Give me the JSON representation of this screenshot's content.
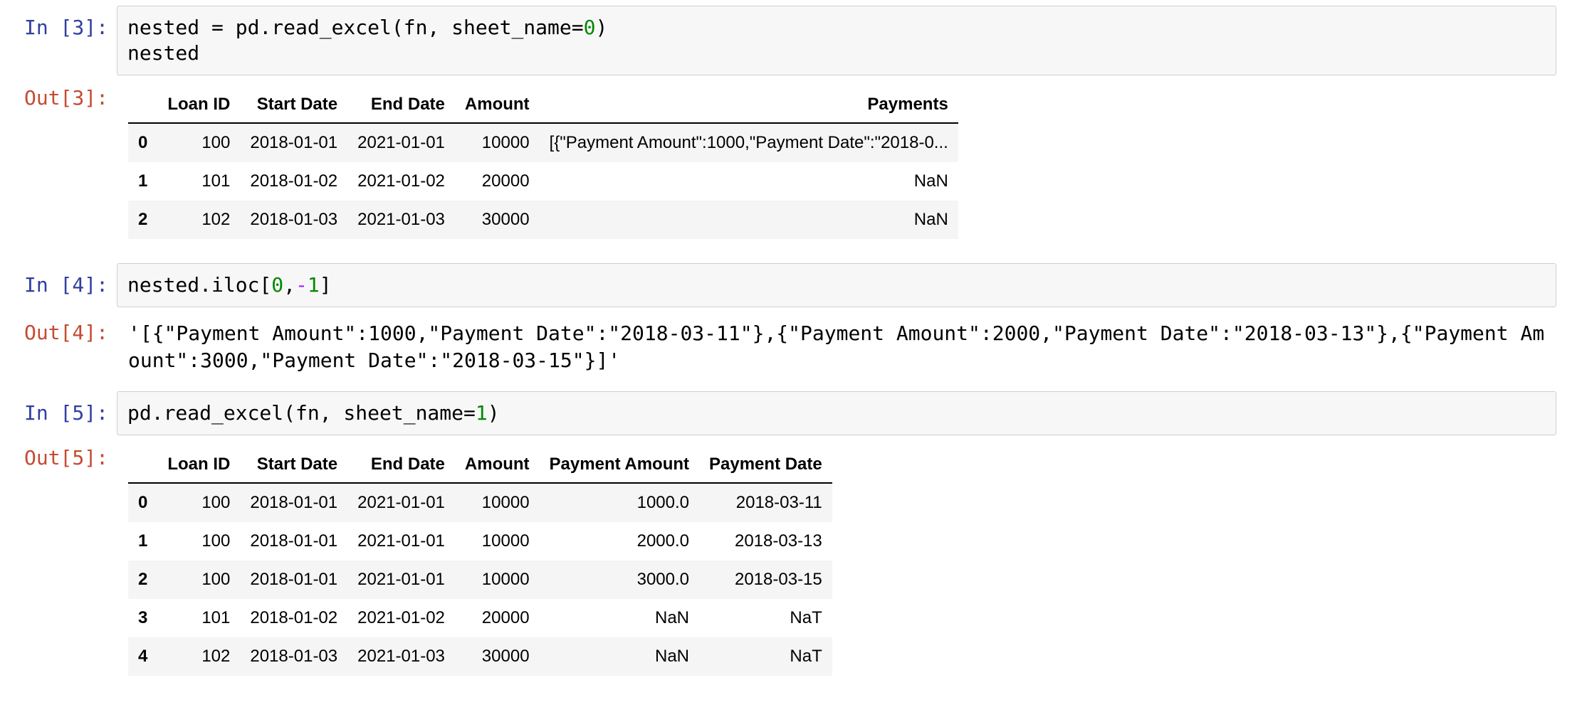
{
  "colors": {
    "prompt_in": "#303F9F",
    "prompt_out": "#C44B32",
    "num": "#008800",
    "op": "#AA22FF",
    "stripe": "#F5F5F5",
    "box_bg": "#F7F7F7",
    "box_border": "#CFCFCF"
  },
  "prompts": {
    "in3": "In [3]:",
    "out3": "Out[3]:",
    "in4": "In [4]:",
    "out4": "Out[4]:",
    "in5": "In [5]:",
    "out5": "Out[5]:"
  },
  "code": {
    "in3": [
      [
        {
          "t": "nested = pd.read_excel(fn, sheet_name="
        },
        {
          "t": "0",
          "c": "num"
        },
        {
          "t": ")"
        }
      ],
      [
        {
          "t": "nested"
        }
      ]
    ],
    "in4": [
      [
        {
          "t": "nested.iloc["
        },
        {
          "t": "0",
          "c": "num"
        },
        {
          "t": ","
        },
        {
          "t": "-",
          "c": "op"
        },
        {
          "t": "1",
          "c": "num"
        },
        {
          "t": "]"
        }
      ]
    ],
    "in5": [
      [
        {
          "t": "pd.read_excel(fn, sheet_name="
        },
        {
          "t": "1",
          "c": "num"
        },
        {
          "t": ")"
        }
      ]
    ]
  },
  "out4_text": "'[{\"Payment Amount\":1000,\"Payment Date\":\"2018-03-11\"},{\"Payment Amount\":2000,\"Payment Date\":\"2018-03-13\"},{\"Payment Amount\":3000,\"Payment Date\":\"2018-03-15\"}]'",
  "tables": {
    "out3": {
      "headers": [
        "",
        "Loan ID",
        "Start Date",
        "End Date",
        "Amount",
        "Payments"
      ],
      "rows": [
        [
          "0",
          "100",
          "2018-01-01",
          "2021-01-01",
          "10000",
          "[{\"Payment Amount\":1000,\"Payment Date\":\"2018-0..."
        ],
        [
          "1",
          "101",
          "2018-01-02",
          "2021-01-02",
          "20000",
          "NaN"
        ],
        [
          "2",
          "102",
          "2018-01-03",
          "2021-01-03",
          "30000",
          "NaN"
        ]
      ]
    },
    "out5": {
      "headers": [
        "",
        "Loan ID",
        "Start Date",
        "End Date",
        "Amount",
        "Payment Amount",
        "Payment Date"
      ],
      "rows": [
        [
          "0",
          "100",
          "2018-01-01",
          "2021-01-01",
          "10000",
          "1000.0",
          "2018-03-11"
        ],
        [
          "1",
          "100",
          "2018-01-01",
          "2021-01-01",
          "10000",
          "2000.0",
          "2018-03-13"
        ],
        [
          "2",
          "100",
          "2018-01-01",
          "2021-01-01",
          "10000",
          "3000.0",
          "2018-03-15"
        ],
        [
          "3",
          "101",
          "2018-01-02",
          "2021-01-02",
          "20000",
          "NaN",
          "NaT"
        ],
        [
          "4",
          "102",
          "2018-01-03",
          "2021-01-03",
          "30000",
          "NaN",
          "NaT"
        ]
      ]
    }
  }
}
